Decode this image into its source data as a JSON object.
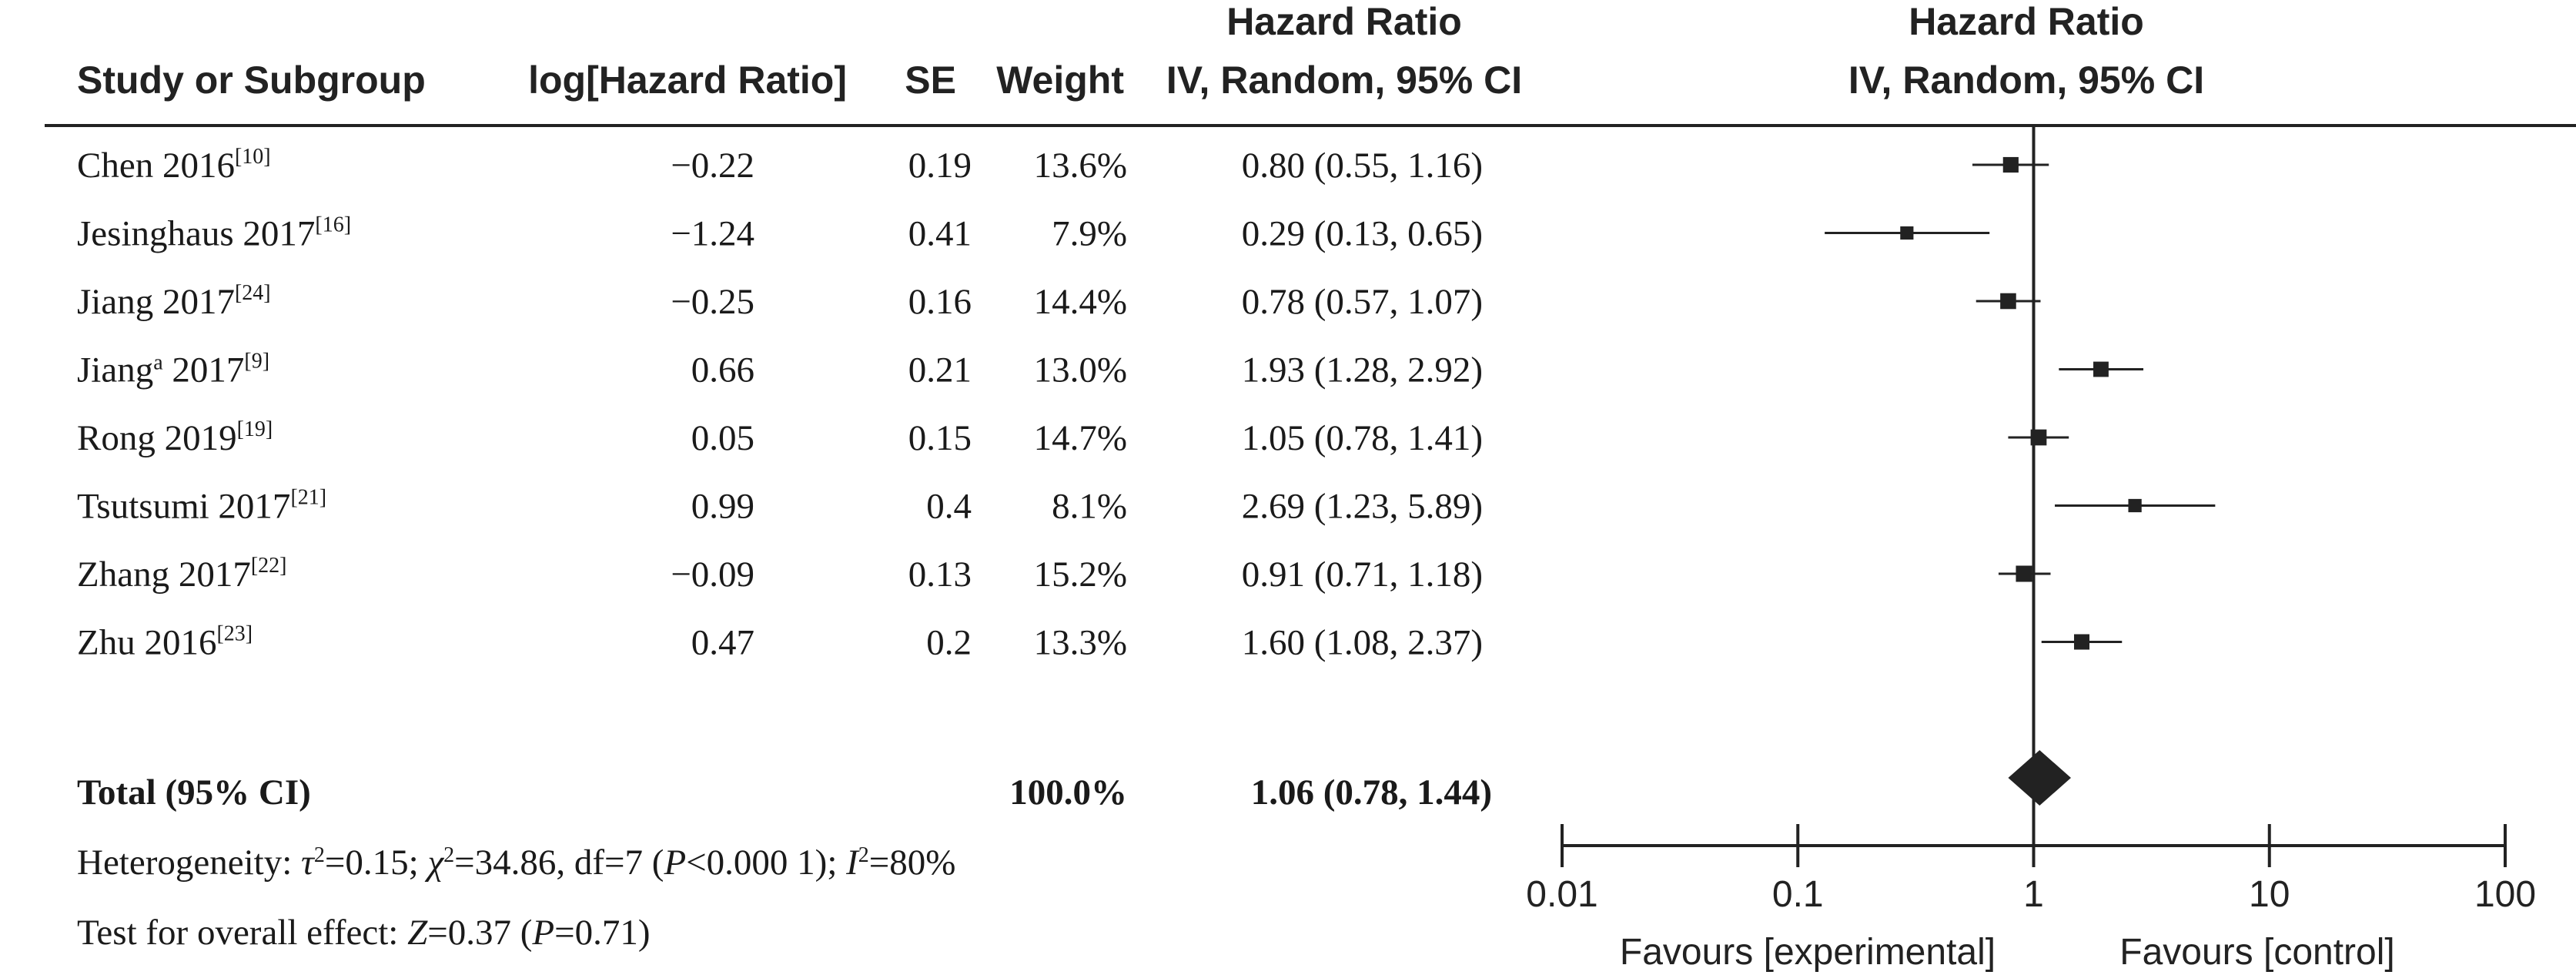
{
  "headers": {
    "study": "Study or Subgroup",
    "loghr": "log[Hazard Ratio]",
    "se": "SE",
    "weight": "Weight",
    "hr_title": "Hazard Ratio",
    "hr_method": "IV, Random, 95% CI",
    "plot_title": "Hazard Ratio",
    "plot_method": "IV, Random, 95% CI"
  },
  "total": {
    "label": "Total (95% CI)",
    "weight": "100.0%",
    "ci_text": "1.06 (0.78, 1.44)"
  },
  "footnotes": {
    "heterogeneity": {
      "prefix": "Heterogeneity: ",
      "tau": "τ",
      "tau_val": "=0.15; ",
      "chi": "χ",
      "chi_val": "=34.86, df=7 (",
      "p": "P",
      "p_val": "<0.000 1); ",
      "i": "I",
      "i_val": "=80%"
    },
    "overall": {
      "prefix": "Test for overall effect: ",
      "z": "Z",
      "z_val": "=0.37 (",
      "p": "P",
      "p_val": "=0.71)"
    }
  },
  "axis": {
    "scale": "log",
    "ticks": [
      0.01,
      0.1,
      1,
      10,
      100
    ],
    "tick_labels": [
      "0.01",
      "0.1",
      "1",
      "10",
      "100"
    ],
    "label_left": "Favours [experimental]",
    "label_right": "Favours [control]"
  },
  "colors": {
    "marker": "#222222",
    "line": "#222222"
  },
  "chart_data": {
    "type": "forest",
    "xscale": "log",
    "xlim": [
      0.01,
      100
    ],
    "null_line": 1,
    "studies": [
      {
        "name": "Chen 2016",
        "sup": "[10]",
        "loghr": "−0.22",
        "se": "0.19",
        "weight": "13.6%",
        "hr": 0.8,
        "lo": 0.55,
        "hi": 1.16,
        "ci_text": "0.80 (0.55, 1.16)"
      },
      {
        "name": "Jesinghaus 2017",
        "sup": "[16]",
        "loghr": "−1.24",
        "se": "0.41",
        "weight": "7.9%",
        "hr": 0.29,
        "lo": 0.13,
        "hi": 0.65,
        "ci_text": "0.29 (0.13, 0.65)"
      },
      {
        "name": "Jiang 2017",
        "sup": "[24]",
        "loghr": "−0.25",
        "se": "0.16",
        "weight": "14.4%",
        "hr": 0.78,
        "lo": 0.57,
        "hi": 1.07,
        "ci_text": "0.78 (0.57, 1.07)"
      },
      {
        "name": "Jiang",
        "name_sup": "a",
        "name_suffix": " 2017",
        "sup": "[9]",
        "loghr": "0.66",
        "se": "0.21",
        "weight": "13.0%",
        "hr": 1.93,
        "lo": 1.28,
        "hi": 2.92,
        "ci_text": "1.93 (1.28, 2.92)"
      },
      {
        "name": "Rong 2019",
        "sup": "[19]",
        "loghr": "0.05",
        "se": "0.15",
        "weight": "14.7%",
        "hr": 1.05,
        "lo": 0.78,
        "hi": 1.41,
        "ci_text": "1.05 (0.78, 1.41)"
      },
      {
        "name": "Tsutsumi 2017",
        "sup": "[21]",
        "loghr": "0.99",
        "se": "0.4",
        "weight": "8.1%",
        "hr": 2.69,
        "lo": 1.23,
        "hi": 5.89,
        "ci_text": "2.69 (1.23, 5.89)"
      },
      {
        "name": "Zhang 2017",
        "sup": "[22]",
        "loghr": "−0.09",
        "se": "0.13",
        "weight": "15.2%",
        "hr": 0.91,
        "lo": 0.71,
        "hi": 1.18,
        "ci_text": "0.91 (0.71, 1.18)"
      },
      {
        "name": "Zhu 2016",
        "sup": "[23]",
        "loghr": "0.47",
        "se": "0.2",
        "weight": "13.3%",
        "hr": 1.6,
        "lo": 1.08,
        "hi": 2.37,
        "ci_text": "1.60 (1.08, 2.37)"
      }
    ],
    "pooled": {
      "hr": 1.06,
      "lo": 0.78,
      "hi": 1.44
    }
  }
}
